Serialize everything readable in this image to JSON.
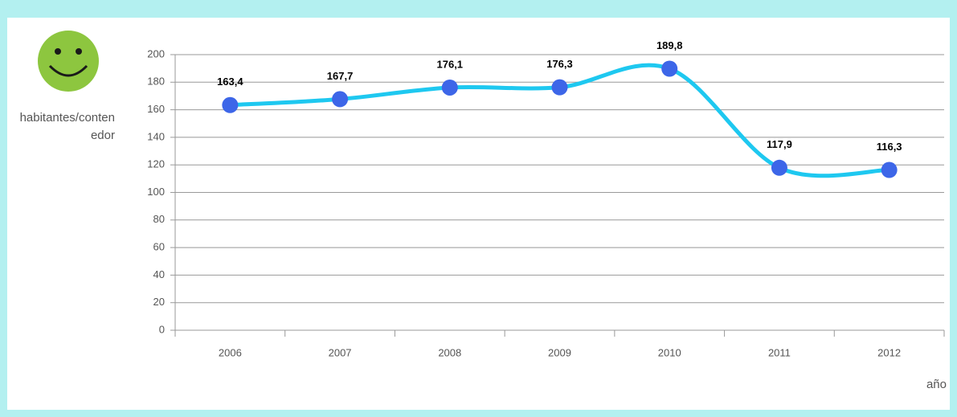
{
  "chart_data": {
    "type": "line",
    "y_label": "habitantes/contenedor",
    "x_label": "año",
    "categories": [
      "2006",
      "2007",
      "2008",
      "2009",
      "2010",
      "2011",
      "2012"
    ],
    "series": [
      {
        "name": "habitantes/contenedor",
        "color": "#1ec8f0",
        "marker_color": "#3d66e8",
        "values": [
          163.4,
          167.7,
          176.1,
          176.3,
          189.8,
          117.9,
          116.3
        ],
        "value_labels": [
          "163,4",
          "167,7",
          "176,1",
          "176,3",
          "189,8",
          "117,9",
          "116,3"
        ]
      }
    ],
    "ylim": [
      0,
      200
    ],
    "yticks": [
      0,
      20,
      40,
      60,
      80,
      100,
      120,
      140,
      160,
      180,
      200
    ],
    "grid": true
  }
}
